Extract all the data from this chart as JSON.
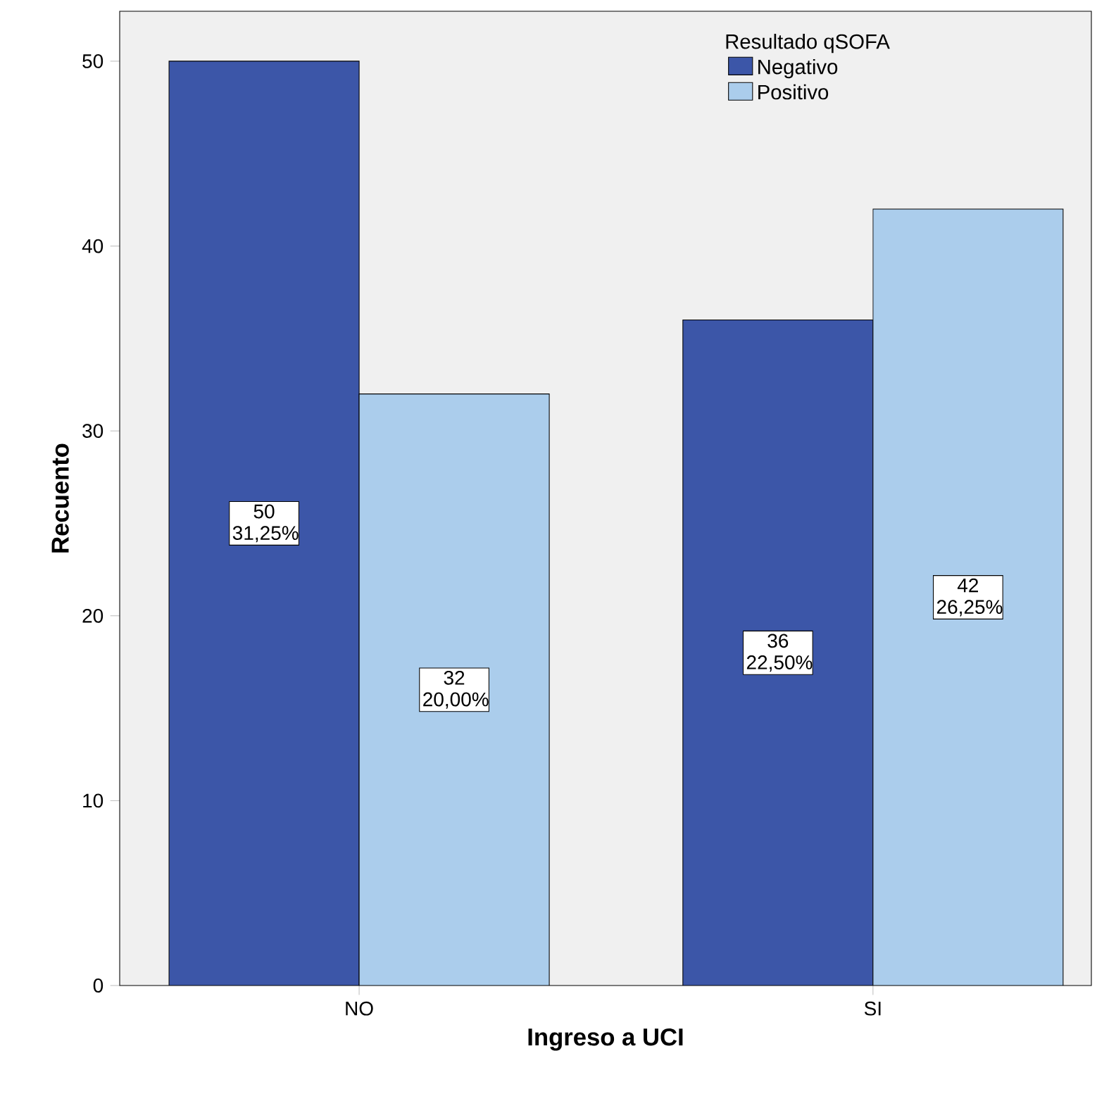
{
  "chart_data": {
    "type": "bar",
    "xlabel": "Ingreso a UCI",
    "ylabel": "Recuento",
    "legend_title": "Resultado qSOFA",
    "categories": [
      "NO",
      "SI"
    ],
    "series": [
      {
        "name": "Negativo",
        "color": "#3c56a8",
        "values": [
          50,
          36
        ],
        "value_labels": [
          "50 31,25%",
          "36 22,50%"
        ]
      },
      {
        "name": "Positivo",
        "color": "#abcdec",
        "values": [
          32,
          42
        ],
        "value_labels": [
          "32 20,00%",
          "42 26,25%"
        ]
      }
    ],
    "ylim": [
      0,
      52.7
    ],
    "yticks": [
      0,
      10,
      20,
      30,
      40,
      50
    ],
    "legend": "top right",
    "grid": false
  }
}
